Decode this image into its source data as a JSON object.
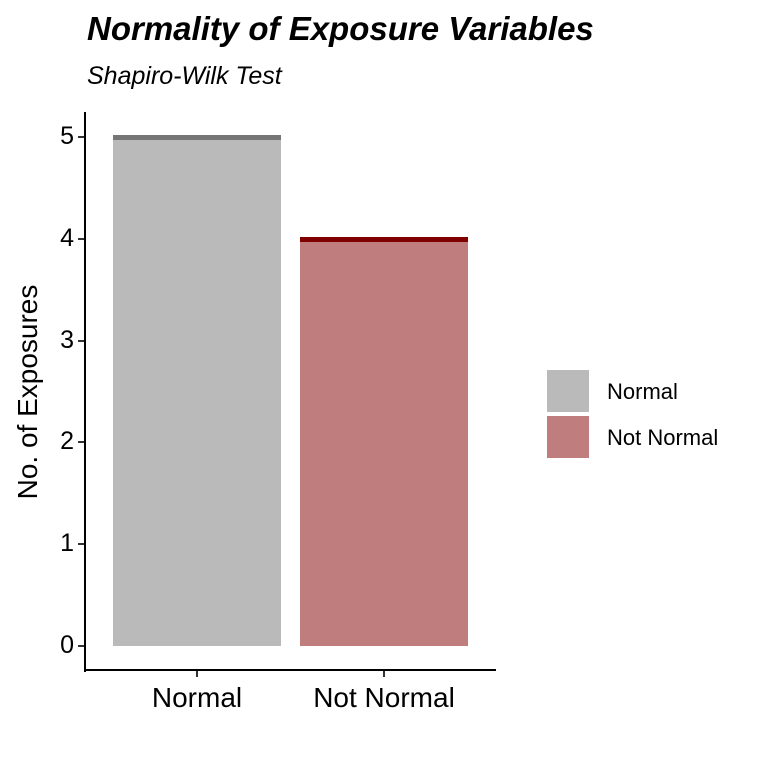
{
  "chart_data": {
    "type": "bar",
    "title": "Normality of Exposure Variables",
    "subtitle": "Shapiro-Wilk Test",
    "xlabel": "",
    "ylabel": "No. of Exposures",
    "categories": [
      "Normal",
      "Not Normal"
    ],
    "values": [
      5,
      4
    ],
    "ylim": [
      0,
      5
    ],
    "yticks": [
      "0",
      "1",
      "2",
      "3",
      "4",
      "5"
    ],
    "grid": false,
    "legend": {
      "position": "right",
      "entries": [
        {
          "label": "Normal",
          "color": "#bababa"
        },
        {
          "label": "Not Normal",
          "color": "#bf7d7d"
        }
      ]
    },
    "colors": {
      "Normal": {
        "fill": "#bababa",
        "outline_top": "#767676"
      },
      "Not Normal": {
        "fill": "#bf7d7d",
        "outline_top": "#800000"
      }
    }
  }
}
